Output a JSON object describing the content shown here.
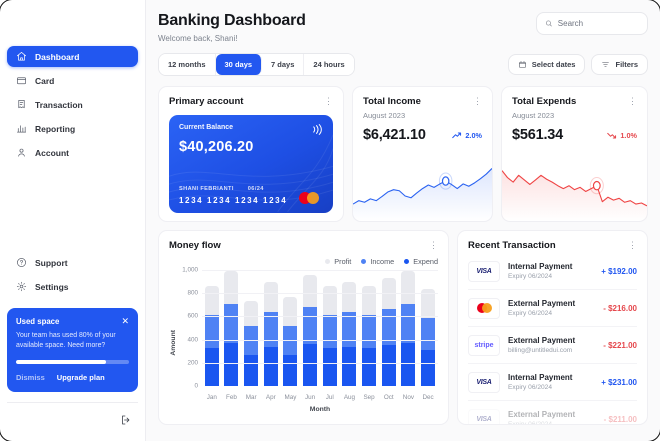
{
  "colors": {
    "primary_blue": "#2257f0",
    "income_blue": "#4f82f4",
    "expend_blue": "#1a56f0",
    "profit_gray": "#e8e9ee",
    "negative_red": "#e5484d",
    "card_gradient_start": "#2b63f5",
    "card_gradient_end": "#173fc4"
  },
  "sidebar": {
    "items": [
      {
        "label": "Dashboard",
        "active": true
      },
      {
        "label": "Card"
      },
      {
        "label": "Transaction"
      },
      {
        "label": "Reporting"
      },
      {
        "label": "Account"
      }
    ],
    "secondary": [
      {
        "label": "Support"
      },
      {
        "label": "Settings"
      }
    ],
    "used_space": {
      "title": "Used space",
      "body": "Your team has used 80% of your available space. Need more?",
      "percent": 80,
      "dismiss_label": "Dismiss",
      "upgrade_label": "Upgrade plan",
      "close_icon": "✕"
    }
  },
  "header": {
    "title": "Banking Dashboard",
    "subtitle": "Welcome back, Shani!",
    "search_placeholder": "Search"
  },
  "controls": {
    "tabs": [
      {
        "label": "12 months"
      },
      {
        "label": "30 days",
        "active": true
      },
      {
        "label": "7 days"
      },
      {
        "label": "24 hours"
      }
    ],
    "select_dates_label": "Select dates",
    "filters_label": "Filters"
  },
  "primary_account": {
    "title": "Primary account",
    "kebab": "⋮",
    "card": {
      "balance_label": "Current Balance",
      "balance": "$40,206.20",
      "holder": "SHANI FEBRIANTI",
      "expiry": "06/24",
      "number": "1234 1234 1234 1234"
    }
  },
  "total_income": {
    "title": "Total Income",
    "period": "August 2023",
    "value": "$6,421.10",
    "change": "2.0%",
    "trend": "up"
  },
  "total_expends": {
    "title": "Total Expends",
    "period": "August 2023",
    "value": "$561.34",
    "change": "1.0%",
    "trend": "down"
  },
  "money_flow": {
    "title": "Money flow",
    "legend": [
      {
        "label": "Profit",
        "color": "#e8e9ee"
      },
      {
        "label": "Income",
        "color": "#4f82f4"
      },
      {
        "label": "Expend",
        "color": "#1a56f0"
      }
    ]
  },
  "transactions": {
    "title": "Recent Transaction",
    "rows": [
      {
        "logo": "visa",
        "logo_text": "VISA",
        "title": "Internal Payment",
        "subtitle": "Expiry 06/2024",
        "amount": "+ $192.00",
        "direction": "pos"
      },
      {
        "logo": "mastercard",
        "logo_text": "",
        "title": "External Payment",
        "subtitle": "Expiry 06/2024",
        "amount": "- $216.00",
        "direction": "neg"
      },
      {
        "logo": "stripe",
        "logo_text": "stripe",
        "title": "External Payment",
        "subtitle": "billing@untitledui.com",
        "amount": "- $221.00",
        "direction": "neg"
      },
      {
        "logo": "visa",
        "logo_text": "VISA",
        "title": "Internal Payment",
        "subtitle": "Expiry 06/2024",
        "amount": "+ $231.00",
        "direction": "pos"
      },
      {
        "logo": "visa",
        "logo_text": "VISA",
        "title": "External Payment",
        "subtitle": "Expiry 06/2024",
        "amount": "- $211.00",
        "direction": "neg",
        "faded": true
      }
    ]
  },
  "chart_data": [
    {
      "type": "line",
      "name": "total-income-sparkline",
      "title": "Total Income trend, August 2023",
      "color": "#2b63f1",
      "values": [
        20,
        26,
        23,
        29,
        26,
        33,
        41,
        45,
        43,
        34,
        31,
        39,
        47,
        53,
        49,
        55,
        60,
        54,
        47,
        55,
        51,
        57,
        64,
        72,
        82
      ],
      "marker_index": 16,
      "ylim": [
        0,
        100
      ]
    },
    {
      "type": "line",
      "name": "total-expends-sparkline",
      "title": "Total Expends trend, August 2023",
      "color": "#ef4444",
      "values": [
        78,
        66,
        58,
        70,
        62,
        54,
        62,
        70,
        63,
        58,
        52,
        47,
        52,
        45,
        49,
        42,
        47,
        52,
        24,
        32,
        27,
        30,
        23,
        26,
        20,
        22,
        17
      ],
      "marker_index": 17,
      "ylim": [
        0,
        100
      ]
    },
    {
      "type": "bar",
      "name": "money-flow",
      "title": "Money flow",
      "stacked": true,
      "categories": [
        "Jan",
        "Feb",
        "Mar",
        "Apr",
        "May",
        "Jun",
        "Jul",
        "Aug",
        "Sep",
        "Oct",
        "Nov",
        "Dec"
      ],
      "series": [
        {
          "name": "Expend",
          "color": "#1a56f0",
          "values": [
            325,
            375,
            270,
            340,
            270,
            365,
            330,
            340,
            330,
            350,
            375,
            310
          ]
        },
        {
          "name": "Income",
          "color": "#4f82f4",
          "values": [
            290,
            335,
            250,
            300,
            250,
            320,
            285,
            300,
            285,
            310,
            335,
            280
          ]
        },
        {
          "name": "Profit",
          "color": "#e8e9ee",
          "values": [
            245,
            280,
            215,
            260,
            245,
            275,
            245,
            260,
            245,
            275,
            285,
            245
          ]
        }
      ],
      "xlabel": "Month",
      "ylabel": "Amount",
      "ylim": [
        0,
        1000
      ],
      "yticks": [
        0,
        200,
        400,
        600,
        800,
        1000
      ],
      "grid": true,
      "legend_position": "top-right"
    }
  ]
}
